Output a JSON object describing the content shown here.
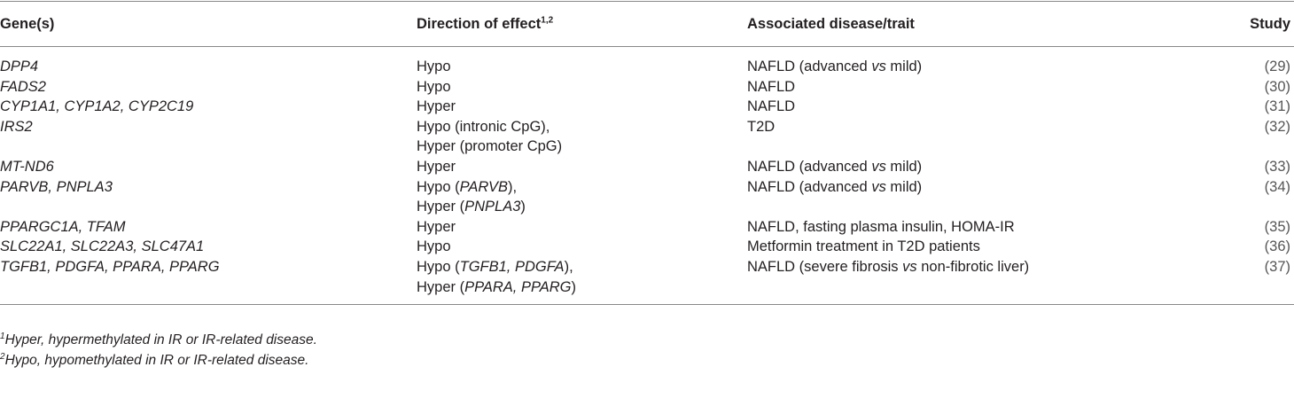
{
  "table": {
    "columns": [
      {
        "text": "Gene(s)"
      },
      {
        "text": "Direction of effect",
        "sup": "1,2"
      },
      {
        "text": "Associated disease/trait"
      },
      {
        "text": "Study"
      }
    ],
    "rows": [
      {
        "genes": "DPP4",
        "direction": [
          [
            "Hypo"
          ]
        ],
        "disease": [
          "NAFLD (advanced ",
          {
            "text": "vs",
            "italic": true
          },
          " mild)"
        ],
        "study": "(29)"
      },
      {
        "genes": "FADS2",
        "direction": [
          [
            "Hypo"
          ]
        ],
        "disease": [
          "NAFLD"
        ],
        "study": "(30)"
      },
      {
        "genes": "CYP1A1, CYP1A2, CYP2C19",
        "direction": [
          [
            "Hyper"
          ]
        ],
        "disease": [
          "NAFLD"
        ],
        "study": "(31)"
      },
      {
        "genes": "IRS2",
        "direction": [
          [
            "Hypo (intronic CpG),"
          ],
          [
            "Hyper (promoter CpG)"
          ]
        ],
        "disease": [
          "T2D"
        ],
        "study": "(32)"
      },
      {
        "genes": "MT-ND6",
        "direction": [
          [
            "Hyper"
          ]
        ],
        "disease": [
          "NAFLD (advanced ",
          {
            "text": "vs",
            "italic": true
          },
          " mild)"
        ],
        "study": "(33)"
      },
      {
        "genes": "PARVB, PNPLA3",
        "direction": [
          [
            "Hypo (",
            {
              "text": "PARVB",
              "italic": true
            },
            "),"
          ],
          [
            "Hyper (",
            {
              "text": "PNPLA3",
              "italic": true
            },
            ")"
          ]
        ],
        "disease": [
          "NAFLD (advanced ",
          {
            "text": "vs",
            "italic": true
          },
          " mild)"
        ],
        "study": "(34)"
      },
      {
        "genes": "PPARGC1A, TFAM",
        "direction": [
          [
            "Hyper"
          ]
        ],
        "disease": [
          "NAFLD, fasting plasma insulin, HOMA-IR"
        ],
        "study": "(35)"
      },
      {
        "genes": "SLC22A1, SLC22A3, SLC47A1",
        "direction": [
          [
            "Hypo"
          ]
        ],
        "disease": [
          "Metformin treatment in T2D patients"
        ],
        "study": "(36)"
      },
      {
        "genes": "TGFB1, PDGFA, PPARA, PPARG",
        "direction": [
          [
            "Hypo (",
            {
              "text": "TGFB1, PDGFA",
              "italic": true
            },
            "),"
          ],
          [
            "Hyper (",
            {
              "text": "PPARA, PPARG",
              "italic": true
            },
            ")"
          ]
        ],
        "disease": [
          "NAFLD (severe fibrosis ",
          {
            "text": "vs",
            "italic": true
          },
          " non-fibrotic liver)"
        ],
        "study": "(37)"
      }
    ],
    "footnotes": [
      {
        "mark": "1",
        "text": "Hyper, hypermethylated in IR or IR-related disease."
      },
      {
        "mark": "2",
        "text": "Hypo, hypomethylated in IR or IR-related disease."
      }
    ]
  }
}
